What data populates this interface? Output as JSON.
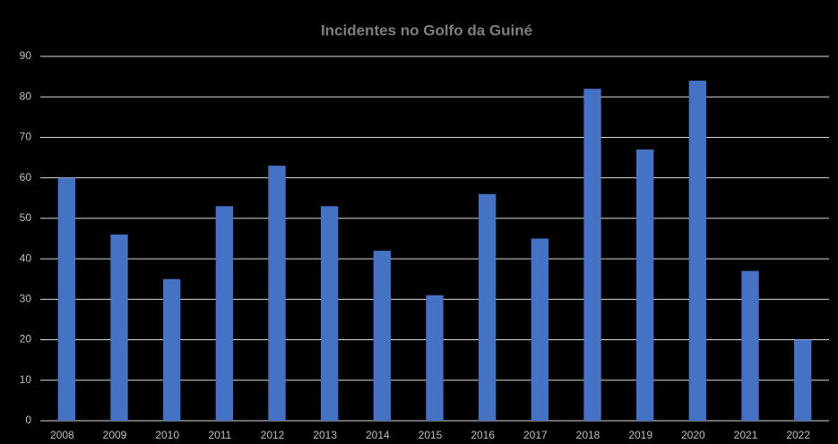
{
  "chart_data": {
    "type": "bar",
    "title": "Incidentes no Golfo da Guiné",
    "categories": [
      "2008",
      "2009",
      "2010",
      "2011",
      "2012",
      "2013",
      "2014",
      "2015",
      "2016",
      "2017",
      "2018",
      "2019",
      "2020",
      "2021",
      "2022"
    ],
    "values": [
      60,
      46,
      35,
      53,
      63,
      53,
      42,
      31,
      56,
      45,
      82,
      67,
      84,
      37,
      20
    ],
    "color": "#4472c4",
    "ylim": [
      0,
      90
    ],
    "yticks": [
      0,
      10,
      20,
      30,
      40,
      50,
      60,
      70,
      80,
      90
    ],
    "grid": true
  }
}
